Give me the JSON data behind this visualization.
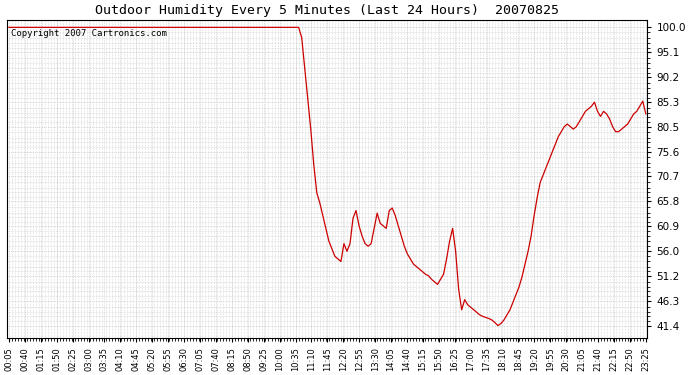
{
  "title": "Outdoor Humidity Every 5 Minutes (Last 24 Hours)  20070825",
  "copyright_text": "Copyright 2007 Cartronics.com",
  "line_color": "#cc0000",
  "bg_color": "#ffffff",
  "grid_color": "#bbbbbb",
  "yticks": [
    41.4,
    46.3,
    51.2,
    56.0,
    60.9,
    65.8,
    70.7,
    75.6,
    80.5,
    85.3,
    90.2,
    95.1,
    100.0
  ],
  "ylim": [
    39.0,
    101.5
  ],
  "xtick_labels": [
    "00:05",
    "00:40",
    "01:15",
    "01:50",
    "02:25",
    "03:00",
    "03:35",
    "04:10",
    "04:45",
    "05:20",
    "05:55",
    "06:30",
    "07:05",
    "07:40",
    "08:15",
    "08:50",
    "09:25",
    "10:00",
    "10:35",
    "11:10",
    "11:45",
    "12:20",
    "12:55",
    "13:30",
    "14:05",
    "14:40",
    "15:15",
    "15:50",
    "16:25",
    "17:00",
    "17:35",
    "18:10",
    "18:45",
    "19:20",
    "19:55",
    "20:30",
    "21:05",
    "21:40",
    "22:15",
    "22:50",
    "23:25"
  ],
  "humidity_values": [
    100.0,
    100.0,
    100.0,
    100.0,
    100.0,
    100.0,
    100.0,
    100.0,
    100.0,
    100.0,
    100.0,
    100.0,
    100.0,
    100.0,
    100.0,
    100.0,
    100.0,
    100.0,
    100.0,
    100.0,
    100.0,
    100.0,
    100.0,
    100.0,
    100.0,
    100.0,
    100.0,
    100.0,
    100.0,
    100.0,
    100.0,
    100.0,
    100.0,
    100.0,
    100.0,
    100.0,
    100.0,
    100.0,
    100.0,
    100.0,
    100.0,
    100.0,
    100.0,
    100.0,
    100.0,
    100.0,
    100.0,
    100.0,
    100.0,
    100.0,
    100.0,
    100.0,
    100.0,
    100.0,
    100.0,
    100.0,
    100.0,
    100.0,
    100.0,
    100.0,
    100.0,
    100.0,
    100.0,
    100.0,
    100.0,
    100.0,
    100.0,
    100.0,
    100.0,
    100.0,
    100.0,
    100.0,
    100.0,
    100.0,
    100.0,
    100.0,
    100.0,
    100.0,
    100.0,
    100.0,
    100.0,
    100.0,
    100.0,
    100.0,
    100.0,
    100.0,
    100.0,
    100.0,
    100.0,
    100.0,
    100.0,
    100.0,
    100.0,
    100.0,
    100.0,
    100.0,
    100.0,
    98.0,
    92.0,
    86.0,
    80.0,
    73.0,
    67.5,
    65.5,
    63.0,
    60.5,
    58.0,
    56.5,
    55.0,
    54.5,
    54.0,
    57.5,
    56.0,
    57.5,
    62.5,
    64.0,
    61.0,
    59.0,
    57.5,
    57.0,
    57.5,
    60.5,
    63.5,
    61.5,
    61.0,
    60.5,
    64.0,
    64.5,
    63.0,
    61.0,
    59.0,
    57.0,
    55.5,
    54.5,
    53.5,
    53.0,
    52.5,
    52.0,
    51.5,
    51.2,
    50.5,
    50.0,
    49.5,
    50.5,
    51.5,
    54.5,
    58.0,
    60.5,
    56.0,
    48.5,
    44.5,
    46.5,
    45.5,
    45.0,
    44.5,
    44.0,
    43.5,
    43.2,
    43.0,
    42.8,
    42.5,
    42.0,
    41.4,
    41.8,
    42.5,
    43.5,
    44.5,
    46.0,
    47.5,
    49.0,
    51.0,
    53.5,
    56.0,
    59.0,
    63.0,
    66.5,
    69.5,
    71.0,
    72.5,
    74.0,
    75.5,
    77.0,
    78.5,
    79.5,
    80.5,
    81.0,
    80.5,
    80.0,
    80.5,
    81.5,
    82.5,
    83.5,
    84.0,
    84.5,
    85.3,
    83.5,
    82.5,
    83.5,
    83.0,
    82.0,
    80.5,
    79.5,
    79.5,
    80.0,
    80.5,
    81.0,
    82.0,
    83.0,
    83.5,
    84.5,
    85.5,
    83.0
  ]
}
